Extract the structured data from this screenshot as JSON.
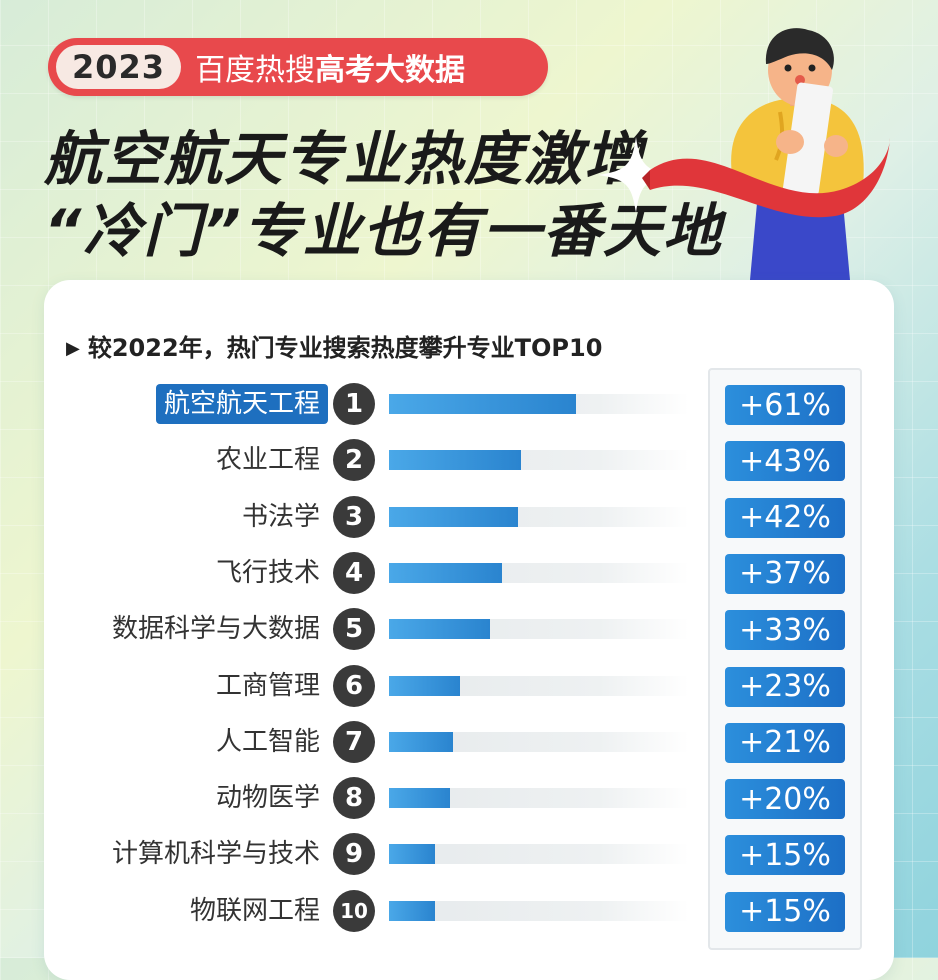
{
  "header": {
    "year": "2023",
    "pre": "百度热搜",
    "strong": "高考大数据",
    "headline1": "航空航天专业热度激增",
    "headline2": "“冷门”专业也有一番天地"
  },
  "colors": {
    "badge_red": "#e8494c",
    "bar_blue": "#2a84cf",
    "pill_blue": "#1e6fbf",
    "number_circle": "#3a3a3a"
  },
  "chart_data": {
    "type": "bar",
    "orientation": "horizontal",
    "title": "较2022年，热门专业搜索热度攀升专业TOP10",
    "ranks": [
      "1",
      "2",
      "3",
      "4",
      "5",
      "6",
      "7",
      "8",
      "9",
      "10"
    ],
    "categories": [
      "航空航天工程",
      "农业工程",
      "书法学",
      "飞行技术",
      "数据科学与大数据",
      "工商管理",
      "人工智能",
      "动物医学",
      "计算机科学与技术",
      "物联网工程"
    ],
    "values": [
      61,
      43,
      42,
      37,
      33,
      23,
      21,
      20,
      15,
      15
    ],
    "value_labels": [
      "+61%",
      "+43%",
      "+42%",
      "+37%",
      "+33%",
      "+23%",
      "+21%",
      "+20%",
      "+15%",
      "+15%"
    ],
    "highlight_index": 0,
    "grid": false
  }
}
